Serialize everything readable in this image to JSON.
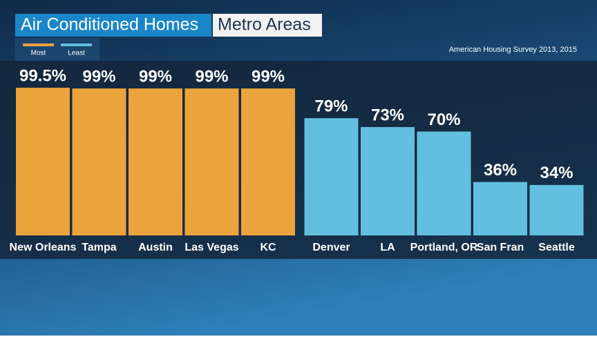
{
  "chart_data": {
    "type": "bar",
    "title": "Air Conditioned Homes",
    "subtitle": "Metro Areas",
    "source": "American Housing Survey 2013, 2015",
    "categories": [
      "New Orleans",
      "Tampa",
      "Austin",
      "Las Vegas",
      "KC",
      "Denver",
      "LA",
      "Portland, OR",
      "San Fran",
      "Seattle"
    ],
    "series": [
      {
        "name": "Most",
        "color": "#eba33c",
        "values": [
          99.5,
          99,
          99,
          99,
          99,
          null,
          null,
          null,
          null,
          null
        ],
        "value_labels": [
          "99.5%",
          "99%",
          "99%",
          "99%",
          "99%",
          null,
          null,
          null,
          null,
          null
        ]
      },
      {
        "name": "Least",
        "color": "#62bfe0",
        "values": [
          null,
          null,
          null,
          null,
          null,
          79,
          73,
          70,
          36,
          34
        ],
        "value_labels": [
          null,
          null,
          null,
          null,
          null,
          "79%",
          "73%",
          "70%",
          "36%",
          "34%"
        ]
      }
    ],
    "ylim": [
      0,
      100
    ],
    "legend": "top-left"
  }
}
